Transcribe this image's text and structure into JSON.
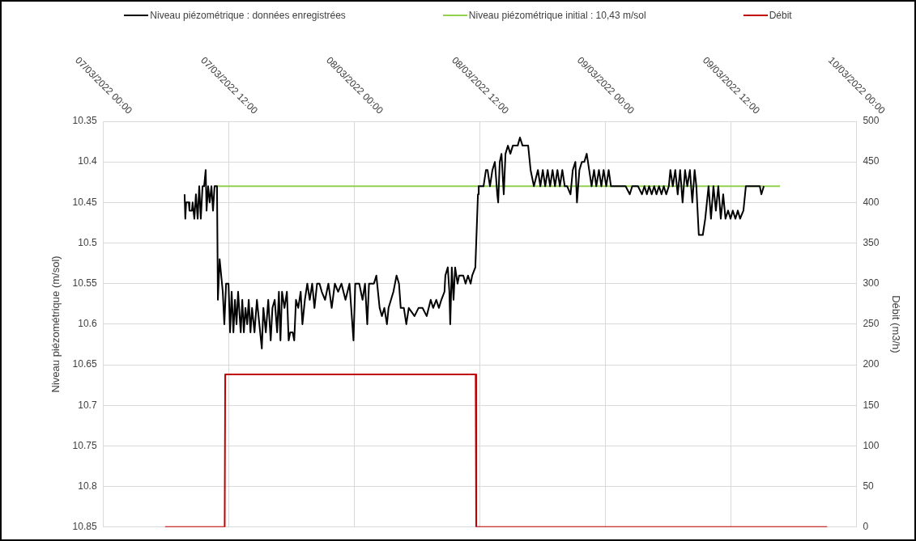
{
  "chart_data": {
    "type": "line",
    "ylabel": "Niveau piézométrique (m/sol)",
    "y2label": "Débit (m3/h)",
    "xlim": [
      "2022-03-07T00:00",
      "2022-03-10T00:00"
    ],
    "xticks": [
      {
        "value": "2022-03-07T00:00",
        "label": "07/03/2022 00:00"
      },
      {
        "value": "2022-03-07T12:00",
        "label": "07/03/2022 12:00"
      },
      {
        "value": "2022-03-08T00:00",
        "label": "08/03/2022 00:00"
      },
      {
        "value": "2022-03-08T12:00",
        "label": "08/03/2022 12:00"
      },
      {
        "value": "2022-03-09T00:00",
        "label": "09/03/2022 00:00"
      },
      {
        "value": "2022-03-09T12:00",
        "label": "09/03/2022 12:00"
      },
      {
        "value": "2022-03-10T00:00",
        "label": "10/03/2022 00:00"
      }
    ],
    "ylim": [
      10.85,
      10.35
    ],
    "yticks": [
      10.35,
      10.4,
      10.45,
      10.5,
      10.55,
      10.6,
      10.65,
      10.7,
      10.75,
      10.8,
      10.85
    ],
    "y2lim": [
      0,
      500
    ],
    "y2ticks": [
      0,
      50,
      100,
      150,
      200,
      250,
      300,
      350,
      400,
      450,
      500
    ],
    "grid": true,
    "legend": "top",
    "marker": "none",
    "series": [
      {
        "name": "Niveau piézométrique : données enregistrées",
        "color": "#000000",
        "x": [
          "2022-03-07T07:46",
          "2022-03-07T07:50",
          "2022-03-07T07:55",
          "2022-03-07T08:10",
          "2022-03-07T08:14",
          "2022-03-07T08:28",
          "2022-03-07T08:32",
          "2022-03-07T08:42",
          "2022-03-07T08:51",
          "2022-03-07T09:01",
          "2022-03-07T09:10",
          "2022-03-07T09:19",
          "2022-03-07T09:29",
          "2022-03-07T09:38",
          "2022-03-07T09:47",
          "2022-03-07T09:52",
          "2022-03-07T10:01",
          "2022-03-07T10:10",
          "2022-03-07T10:20",
          "2022-03-07T10:29",
          "2022-03-07T10:38",
          "2022-03-07T10:52",
          "2022-03-07T10:57",
          "2022-03-07T11:07",
          "2022-03-07T11:16",
          "2022-03-07T11:25",
          "2022-03-07T11:34",
          "2022-03-07T11:44",
          "2022-03-07T11:58",
          "2022-03-07T12:07",
          "2022-03-07T12:16",
          "2022-03-07T12:26",
          "2022-03-07T12:35",
          "2022-03-07T12:44",
          "2022-03-07T12:53",
          "2022-03-07T13:08",
          "2022-03-07T13:17",
          "2022-03-07T13:26",
          "2022-03-07T13:35",
          "2022-03-07T13:45",
          "2022-03-07T13:54",
          "2022-03-07T14:04",
          "2022-03-07T14:13",
          "2022-03-07T14:27",
          "2022-03-07T14:41",
          "2022-03-07T14:55",
          "2022-03-07T15:09",
          "2022-03-07T15:18",
          "2022-03-07T15:32",
          "2022-03-07T15:46",
          "2022-03-07T16:00",
          "2022-03-07T16:10",
          "2022-03-07T16:23",
          "2022-03-07T16:37",
          "2022-03-07T16:47",
          "2022-03-07T16:56",
          "2022-03-07T17:05",
          "2022-03-07T17:19",
          "2022-03-07T17:33",
          "2022-03-07T17:43",
          "2022-03-07T17:52",
          "2022-03-07T18:06",
          "2022-03-07T18:15",
          "2022-03-07T18:25",
          "2022-03-07T18:38",
          "2022-03-07T18:52",
          "2022-03-07T19:02",
          "2022-03-07T19:16",
          "2022-03-07T19:30",
          "2022-03-07T19:44",
          "2022-03-07T19:58",
          "2022-03-07T20:11",
          "2022-03-07T20:26",
          "2022-03-07T20:40",
          "2022-03-07T20:53",
          "2022-03-07T21:12",
          "2022-03-07T21:31",
          "2022-03-07T21:50",
          "2022-03-07T22:08",
          "2022-03-07T22:27",
          "2022-03-07T22:46",
          "2022-03-07T23:09",
          "2022-03-07T23:32",
          "2022-03-07T23:55",
          "2022-03-08T00:05",
          "2022-03-08T00:28",
          "2022-03-08T00:47",
          "2022-03-08T01:01",
          "2022-03-08T01:14",
          "2022-03-08T01:24",
          "2022-03-08T01:52",
          "2022-03-08T02:06",
          "2022-03-08T02:25",
          "2022-03-08T02:38",
          "2022-03-08T02:52",
          "2022-03-08T03:07",
          "2022-03-08T03:16",
          "2022-03-08T03:44",
          "2022-03-08T04:02",
          "2022-03-08T04:16",
          "2022-03-08T04:26",
          "2022-03-08T04:44",
          "2022-03-08T04:58",
          "2022-03-08T05:12",
          "2022-03-08T05:45",
          "2022-03-08T06:08",
          "2022-03-08T06:31",
          "2022-03-08T06:55",
          "2022-03-08T07:18",
          "2022-03-08T07:32",
          "2022-03-08T07:50",
          "2022-03-08T08:05",
          "2022-03-08T08:19",
          "2022-03-08T08:37",
          "2022-03-08T08:42",
          "2022-03-08T08:56",
          "2022-03-08T09:05",
          "2022-03-08T09:10",
          "2022-03-08T09:19",
          "2022-03-08T09:29",
          "2022-03-08T09:38",
          "2022-03-08T09:52",
          "2022-03-08T10:01",
          "2022-03-08T10:10",
          "2022-03-08T10:25",
          "2022-03-08T10:38",
          "2022-03-08T10:52",
          "2022-03-08T11:07",
          "2022-03-08T11:16",
          "2022-03-08T11:34",
          "2022-03-08T11:49",
          "2022-03-08T11:53",
          "2022-03-08T12:02",
          "2022-03-08T12:21",
          "2022-03-08T12:35",
          "2022-03-08T12:44",
          "2022-03-08T12:58",
          "2022-03-08T13:12",
          "2022-03-08T13:26",
          "2022-03-08T13:40",
          "2022-03-08T13:45",
          "2022-03-08T13:54",
          "2022-03-08T14:04",
          "2022-03-08T14:17",
          "2022-03-08T14:27",
          "2022-03-08T14:41",
          "2022-03-08T14:55",
          "2022-03-08T15:09",
          "2022-03-08T15:23",
          "2022-03-08T15:37",
          "2022-03-08T15:50",
          "2022-03-08T16:05",
          "2022-03-08T16:19",
          "2022-03-08T16:37",
          "2022-03-08T16:51",
          "2022-03-08T17:10",
          "2022-03-08T17:33",
          "2022-03-08T17:47",
          "2022-03-08T18:01",
          "2022-03-08T18:15",
          "2022-03-08T18:29",
          "2022-03-08T18:43",
          "2022-03-08T18:57",
          "2022-03-08T19:11",
          "2022-03-08T19:25",
          "2022-03-08T19:39",
          "2022-03-08T19:53",
          "2022-03-08T20:07",
          "2022-03-08T20:21",
          "2022-03-08T20:40",
          "2022-03-08T20:53",
          "2022-03-08T21:08",
          "2022-03-08T21:17",
          "2022-03-08T21:31",
          "2022-03-08T21:45",
          "2022-03-08T21:59",
          "2022-03-08T22:13",
          "2022-03-08T22:27",
          "2022-03-08T22:41",
          "2022-03-08T22:55",
          "2022-03-08T23:08",
          "2022-03-08T23:23",
          "2022-03-08T23:37",
          "2022-03-08T23:50",
          "2022-03-09T00:05",
          "2022-03-09T00:19",
          "2022-03-09T00:32",
          "2022-03-09T01:10",
          "2022-03-09T01:56",
          "2022-03-09T02:20",
          "2022-03-09T02:34",
          "2022-03-09T03:07",
          "2022-03-09T03:30",
          "2022-03-09T03:44",
          "2022-03-09T03:58",
          "2022-03-09T04:11",
          "2022-03-09T04:26",
          "2022-03-09T04:40",
          "2022-03-09T04:53",
          "2022-03-09T05:08",
          "2022-03-09T05:22",
          "2022-03-09T05:35",
          "2022-03-09T05:49",
          "2022-03-09T06:04",
          "2022-03-09T06:13",
          "2022-03-09T06:27",
          "2022-03-09T06:41",
          "2022-03-09T06:55",
          "2022-03-09T07:09",
          "2022-03-09T07:23",
          "2022-03-09T07:37",
          "2022-03-09T07:50",
          "2022-03-09T08:05",
          "2022-03-09T08:19",
          "2022-03-09T08:32",
          "2022-03-09T08:42",
          "2022-03-09T08:56",
          "2022-03-09T09:19",
          "2022-03-09T09:33",
          "2022-03-09T09:52",
          "2022-03-09T10:06",
          "2022-03-09T10:20",
          "2022-03-09T10:34",
          "2022-03-09T10:48",
          "2022-03-09T11:02",
          "2022-03-09T11:16",
          "2022-03-09T11:29",
          "2022-03-09T11:44",
          "2022-03-09T11:58",
          "2022-03-09T12:11",
          "2022-03-09T12:26",
          "2022-03-09T12:40",
          "2022-03-09T12:53",
          "2022-03-09T13:12",
          "2022-03-09T13:26",
          "2022-03-09T13:59",
          "2022-03-09T14:46",
          "2022-03-09T14:55",
          "2022-03-09T15:09"
        ],
        "values": [
          10.44,
          10.47,
          10.45,
          10.45,
          10.46,
          10.46,
          10.45,
          10.47,
          10.44,
          10.47,
          10.43,
          10.47,
          10.43,
          10.43,
          10.41,
          10.46,
          10.43,
          10.45,
          10.43,
          10.46,
          10.43,
          10.43,
          10.57,
          10.52,
          10.54,
          10.56,
          10.6,
          10.55,
          10.55,
          10.61,
          10.56,
          10.61,
          10.57,
          10.6,
          10.56,
          10.61,
          10.57,
          10.61,
          10.58,
          10.6,
          10.57,
          10.61,
          10.58,
          10.61,
          10.57,
          10.6,
          10.63,
          10.58,
          10.61,
          10.57,
          10.62,
          10.58,
          10.57,
          10.61,
          10.56,
          10.62,
          10.56,
          10.58,
          10.56,
          10.62,
          10.61,
          10.61,
          10.62,
          10.57,
          10.58,
          10.56,
          10.6,
          10.57,
          10.55,
          10.57,
          10.55,
          10.58,
          10.55,
          10.55,
          10.56,
          10.57,
          10.55,
          10.58,
          10.55,
          10.56,
          10.55,
          10.57,
          10.55,
          10.62,
          10.55,
          10.55,
          10.57,
          10.55,
          10.6,
          10.55,
          10.55,
          10.54,
          10.58,
          10.59,
          10.58,
          10.6,
          10.58,
          10.56,
          10.54,
          10.55,
          10.58,
          10.58,
          10.6,
          10.58,
          10.59,
          10.58,
          10.58,
          10.59,
          10.57,
          10.58,
          10.57,
          10.58,
          10.57,
          10.56,
          10.54,
          10.53,
          10.56,
          10.6,
          10.53,
          10.57,
          10.53,
          10.55,
          10.54,
          10.54,
          10.54,
          10.55,
          10.54,
          10.55,
          10.54,
          10.53,
          10.44,
          10.43,
          10.43,
          10.43,
          10.41,
          10.41,
          10.43,
          10.41,
          10.4,
          10.44,
          10.45,
          10.4,
          10.39,
          10.44,
          10.39,
          10.38,
          10.39,
          10.38,
          10.38,
          10.38,
          10.37,
          10.38,
          10.38,
          10.38,
          10.41,
          10.43,
          10.41,
          10.43,
          10.41,
          10.43,
          10.41,
          10.43,
          10.41,
          10.43,
          10.41,
          10.43,
          10.41,
          10.43,
          10.43,
          10.44,
          10.41,
          10.4,
          10.45,
          10.41,
          10.4,
          10.4,
          10.39,
          10.41,
          10.43,
          10.41,
          10.43,
          10.41,
          10.43,
          10.41,
          10.43,
          10.41,
          10.43,
          10.43,
          10.43,
          10.44,
          10.43,
          10.43,
          10.44,
          10.43,
          10.44,
          10.43,
          10.44,
          10.43,
          10.44,
          10.43,
          10.44,
          10.43,
          10.44,
          10.43,
          10.41,
          10.43,
          10.41,
          10.44,
          10.41,
          10.45,
          10.41,
          10.43,
          10.41,
          10.45,
          10.41,
          10.43,
          10.49,
          10.49,
          10.47,
          10.43,
          10.47,
          10.43,
          10.46,
          10.43,
          10.47,
          10.44,
          10.47,
          10.46,
          10.47,
          10.46,
          10.47,
          10.46,
          10.47,
          10.46,
          10.43,
          10.43,
          10.43,
          10.44,
          10.43
        ]
      },
      {
        "name": "Niveau piézométrique initial : 10,43 m/sol",
        "color": "#92d050",
        "x": [
          "2022-03-07T10:36",
          "2022-03-09T16:42"
        ],
        "values": [
          10.43,
          10.43
        ]
      },
      {
        "name": "Débit",
        "color": "#c00000",
        "axis": "y2",
        "x": [
          "2022-03-07T05:54",
          "2022-03-07T11:36",
          "2022-03-07T11:39",
          "2022-03-08T11:36",
          "2022-03-08T11:39",
          "2022-03-09T21:12"
        ],
        "values": [
          0,
          0,
          188,
          188,
          0,
          0
        ]
      }
    ]
  }
}
